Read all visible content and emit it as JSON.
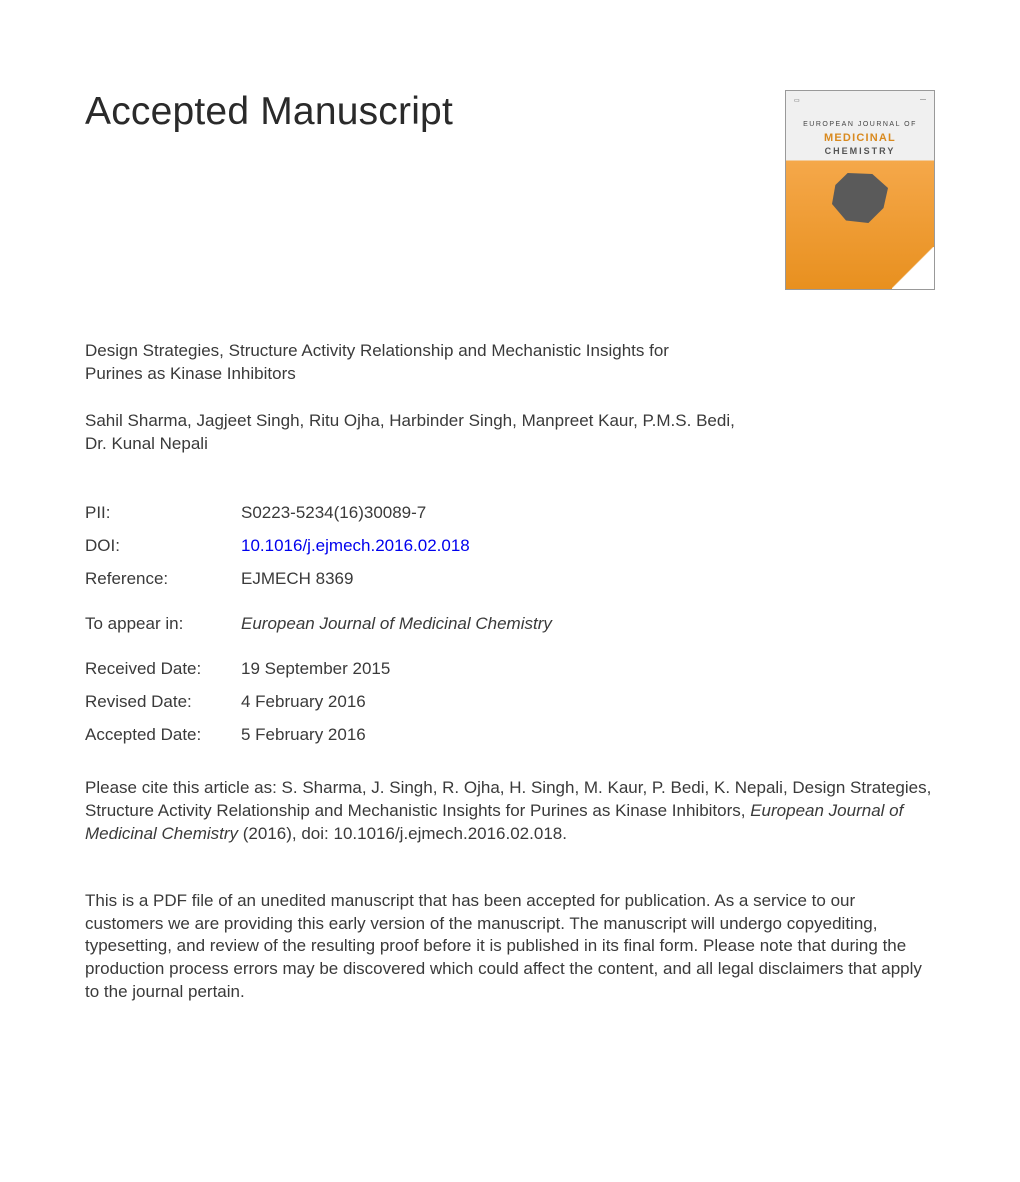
{
  "heading": "Accepted Manuscript",
  "journal_thumb": {
    "line1": "EUROPEAN JOURNAL OF",
    "line2": "MEDICINAL",
    "line3": "CHEMISTRY",
    "colors": {
      "top_bg": "#f0f0f0",
      "bottom_bg_start": "#f5a84a",
      "bottom_bg_end": "#e8901f",
      "title_accent": "#d98a1f"
    }
  },
  "article": {
    "title": "Design Strategies, Structure Activity Relationship and Mechanistic Insights for Purines as Kinase Inhibitors",
    "authors": "Sahil Sharma, Jagjeet Singh, Ritu Ojha, Harbinder Singh, Manpreet Kaur, P.M.S. Bedi, Dr. Kunal Nepali"
  },
  "meta": {
    "pii_label": "PII:",
    "pii": "S0223-5234(16)30089-7",
    "doi_label": "DOI:",
    "doi": "10.1016/j.ejmech.2016.02.018",
    "ref_label": "Reference:",
    "ref": "EJMECH 8369",
    "appear_label": "To appear in:",
    "appear": "European Journal of Medicinal Chemistry",
    "received_label": "Received Date:",
    "received": "19 September 2015",
    "revised_label": "Revised Date:",
    "revised": "4 February 2016",
    "accepted_label": "Accepted Date:",
    "accepted": "5 February 2016"
  },
  "citation": {
    "prefix": "Please cite this article as: S. Sharma, J. Singh, R. Ojha, H. Singh, M. Kaur, P. Bedi, K. Nepali, Design Strategies, Structure Activity Relationship and Mechanistic Insights for Purines as Kinase Inhibitors, ",
    "journal": "European Journal of Medicinal Chemistry",
    "suffix": " (2016), doi: 10.1016/j.ejmech.2016.02.018."
  },
  "disclaimer": "This is a PDF file of an unedited manuscript that has been accepted for publication. As a service to our customers we are providing this early version of the manuscript. The manuscript will undergo copyediting, typesetting, and review of the resulting proof before it is published in its final form. Please note that during the production process errors may be discovered which could affect the content, and all legal disclaimers that apply to the journal pertain."
}
